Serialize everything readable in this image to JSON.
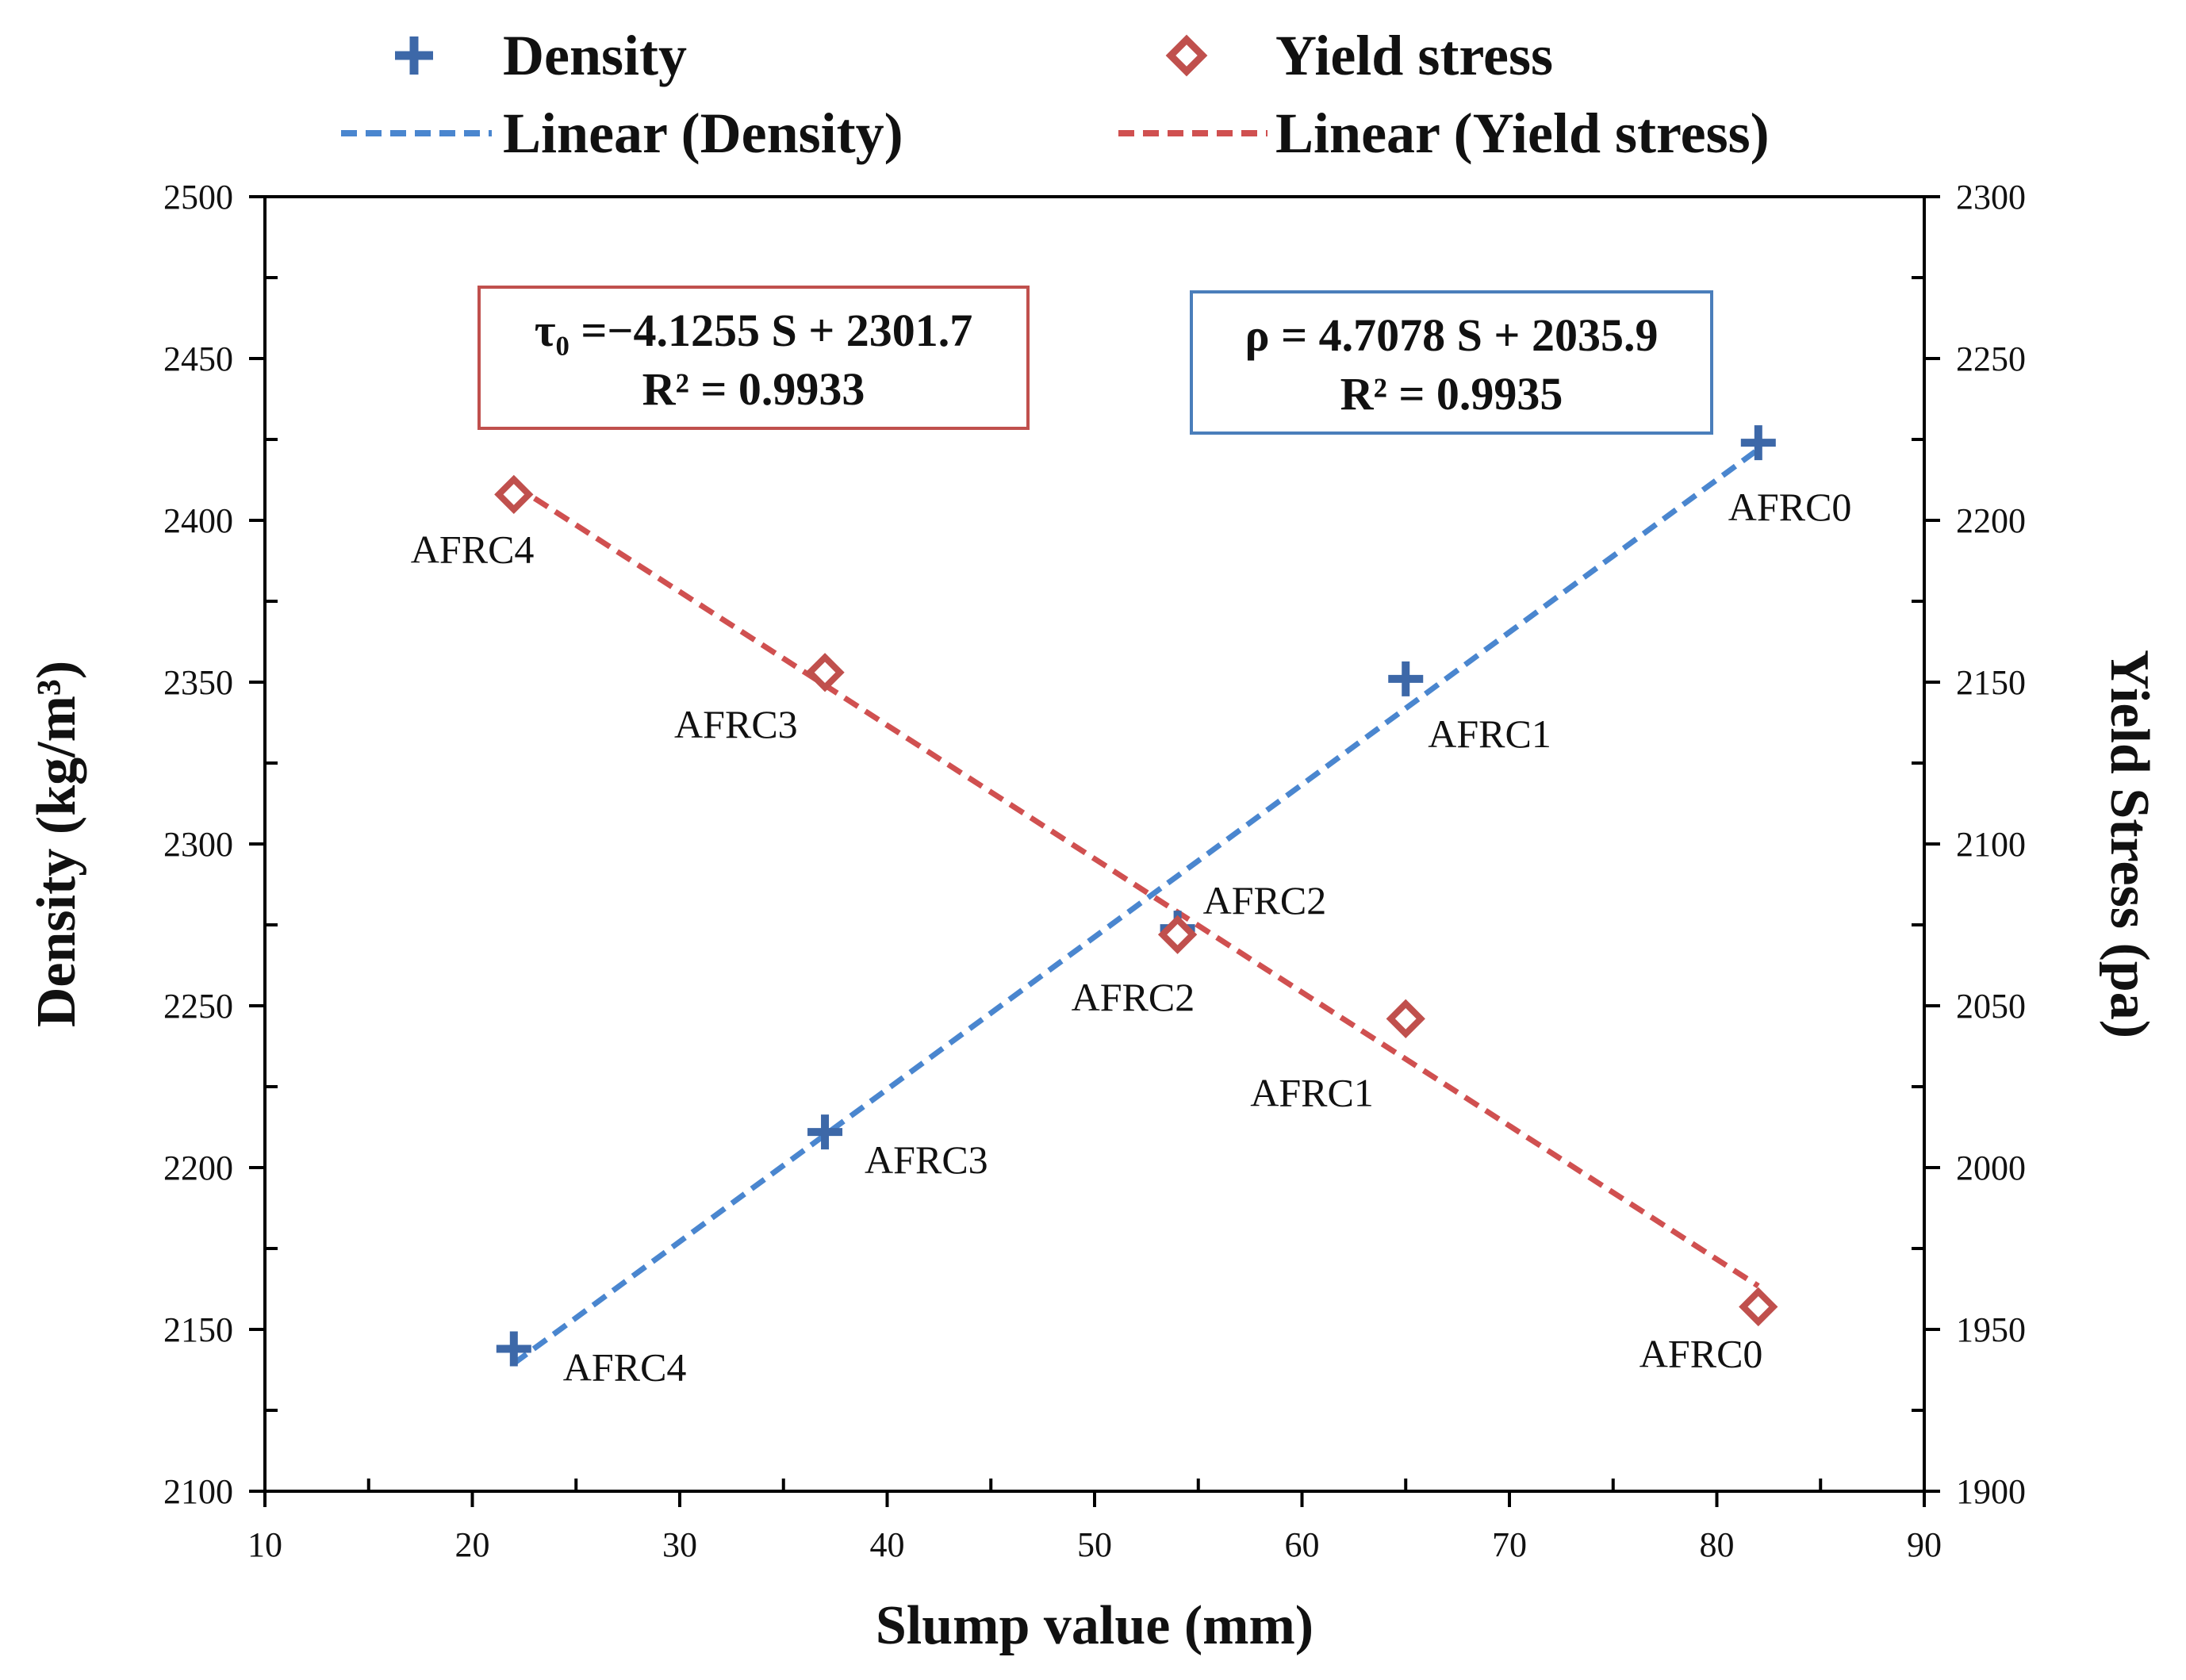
{
  "chart_data": {
    "type": "scatter",
    "x": [
      22,
      37,
      54,
      65,
      82
    ],
    "xlabel": "Slump value (mm)",
    "xlim": [
      10,
      90
    ],
    "x_ticks": [
      "10",
      "20",
      "30",
      "40",
      "50",
      "60",
      "70",
      "80",
      "90"
    ],
    "ylabel_left": "Density (kg/m³)",
    "ylim_left": [
      2100,
      2500
    ],
    "y_ticks_left": [
      "2100",
      "2150",
      "2200",
      "2250",
      "2300",
      "2350",
      "2400",
      "2450",
      "2500"
    ],
    "ylabel_right": "Yield Stress (pa)",
    "ylim_right": [
      1900,
      2300
    ],
    "y_ticks_right": [
      "1900",
      "1950",
      "2000",
      "2050",
      "2100",
      "2150",
      "2200",
      "2250",
      "2300"
    ],
    "series": [
      {
        "name": "Density",
        "axis": "left",
        "marker": "plus",
        "color": "#3D68A8",
        "x": [
          22,
          37,
          54,
          65,
          82
        ],
        "values": [
          2144,
          2211,
          2274,
          2351,
          2424
        ],
        "point_labels": [
          "AFRC4",
          "AFRC3",
          "AFRC2",
          "AFRC1",
          "AFRC0"
        ]
      },
      {
        "name": "Yield stress",
        "axis": "right",
        "marker": "diamond",
        "color": "#C0504D",
        "x": [
          22,
          37,
          54,
          65,
          82
        ],
        "values": [
          2208,
          2153,
          2072,
          2046,
          1957
        ],
        "point_labels": [
          "AFRC4",
          "AFRC3",
          "AFRC2",
          "AFRC1",
          "AFRC0"
        ]
      }
    ],
    "trendlines": [
      {
        "name": "Linear (Density)",
        "axis": "left",
        "color": "#4A86CF",
        "slope": 4.7078,
        "intercept": 2035.9,
        "x_range": [
          22,
          82
        ]
      },
      {
        "name": "Linear (Yield stress)",
        "axis": "right",
        "color": "#D05050",
        "slope": -4.1255,
        "intercept": 2301.7,
        "x_range": [
          22,
          82
        ]
      }
    ],
    "legend": {
      "placement": "top",
      "entries": [
        "Density",
        "Yield stress",
        "Linear (Density)",
        "Linear (Yield stress)"
      ]
    },
    "annotations": {
      "yield_equation": "τ₀ =−4.1255 S + 2301.7",
      "yield_r2": "R² = 0.9933",
      "density_equation": "ρ = 4.7078 S + 2035.9",
      "density_r2": "R² = 0.9935"
    }
  }
}
